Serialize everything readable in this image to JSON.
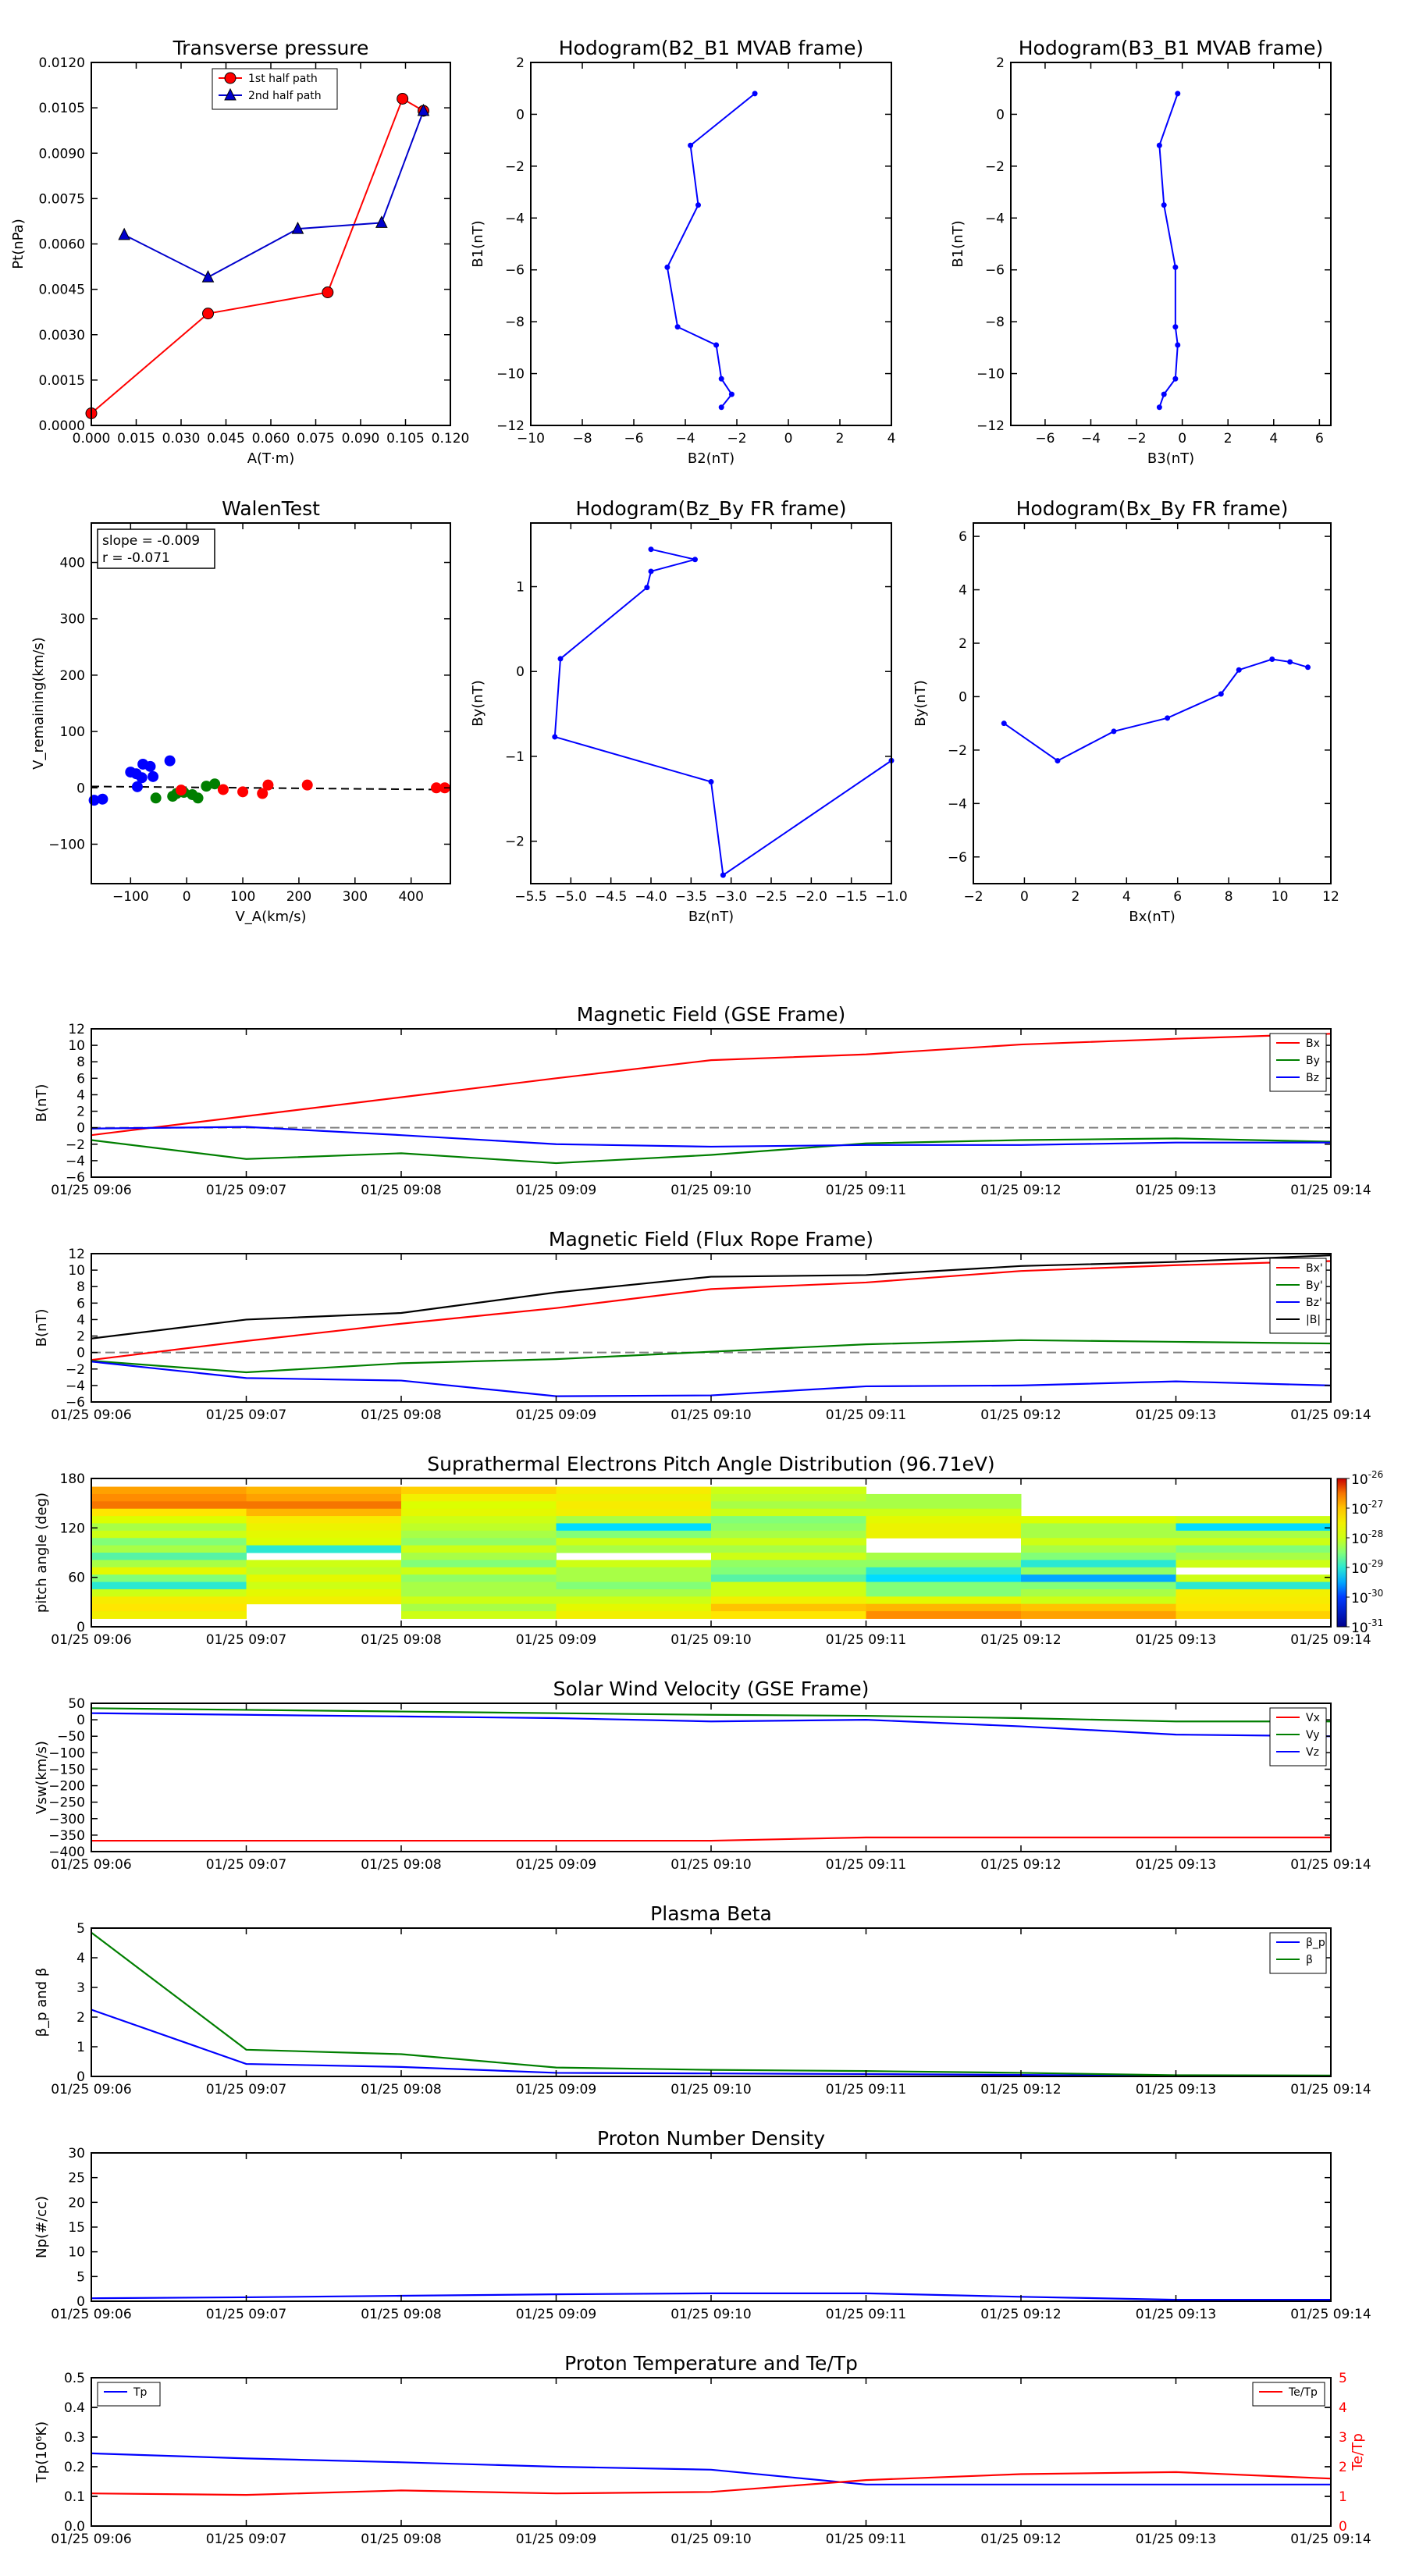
{
  "chart_data": [
    {
      "id": "transverse-pressure",
      "type": "line",
      "title": "Transverse pressure",
      "xlabel": "A(T·m)",
      "ylabel": "Pt(nPa)",
      "xlim": [
        0,
        0.12
      ],
      "ylim": [
        0,
        0.012
      ],
      "xticks": [
        "0.000",
        "0.015",
        "0.030",
        "0.045",
        "0.060",
        "0.075",
        "0.090",
        "0.105",
        "0.120"
      ],
      "yticks": [
        "0.0000",
        "0.0015",
        "0.0030",
        "0.0045",
        "0.0060",
        "0.0075",
        "0.0090",
        "0.0105",
        "0.0120"
      ],
      "legend": "top-center",
      "series": [
        {
          "name": "1st half path",
          "color": "#ff0000",
          "marker": "circle",
          "x": [
            0.0,
            0.039,
            0.079,
            0.104,
            0.111
          ],
          "y": [
            0.0004,
            0.0037,
            0.0044,
            0.0108,
            0.0104
          ]
        },
        {
          "name": "2nd half path",
          "color": "#0000cc",
          "marker": "triangle",
          "x": [
            0.011,
            0.039,
            0.069,
            0.097,
            0.111
          ],
          "y": [
            0.0063,
            0.0049,
            0.0065,
            0.0067,
            0.0104
          ]
        }
      ]
    },
    {
      "id": "hodogram-b2-b1",
      "type": "line",
      "title": "Hodogram(B2_B1 MVAB frame)",
      "xlabel": "B2(nT)",
      "ylabel": "B1(nT)",
      "xlim": [
        -10,
        4
      ],
      "ylim": [
        -12,
        2
      ],
      "xticks": [
        "−10",
        "−8",
        "−6",
        "−4",
        "−2",
        "0",
        "2",
        "4"
      ],
      "yticks": [
        "−12",
        "−10",
        "−8",
        "−6",
        "−4",
        "−2",
        "0",
        "2"
      ],
      "series": [
        {
          "color": "#0000ff",
          "marker": "dot",
          "x": [
            -1.3,
            -3.8,
            -3.5,
            -4.7,
            -4.3,
            -2.8,
            -2.6,
            -2.2,
            -2.6
          ],
          "y": [
            0.8,
            -1.2,
            -3.5,
            -5.9,
            -8.2,
            -8.9,
            -10.2,
            -10.8,
            -11.3
          ]
        }
      ]
    },
    {
      "id": "hodogram-b3-b1",
      "type": "line",
      "title": "Hodogram(B3_B1 MVAB frame)",
      "xlabel": "B3(nT)",
      "ylabel": "B1(nT)",
      "xlim": [
        -7.5,
        6.5
      ],
      "ylim": [
        -12,
        2
      ],
      "xticks": [
        "−6",
        "−4",
        "−2",
        "0",
        "2",
        "4",
        "6"
      ],
      "xtick_values": [
        -6,
        -4,
        -2,
        0,
        2,
        4,
        6
      ],
      "yticks": [
        "−12",
        "−10",
        "−8",
        "−6",
        "−4",
        "−2",
        "0",
        "2"
      ],
      "series": [
        {
          "color": "#0000ff",
          "marker": "dot",
          "x": [
            -0.2,
            -1.0,
            -0.8,
            -0.3,
            -0.3,
            -0.2,
            -0.3,
            -0.8,
            -1.0
          ],
          "y": [
            0.8,
            -1.2,
            -3.5,
            -5.9,
            -8.2,
            -8.9,
            -10.2,
            -10.8,
            -11.3
          ]
        }
      ]
    },
    {
      "id": "walen-test",
      "type": "scatter",
      "title": "WalenTest",
      "xlabel": "V_A(km/s)",
      "ylabel": "V_remaining(km/s)",
      "xlim": [
        -170,
        470
      ],
      "ylim": [
        -170,
        470
      ],
      "xticks": [
        "−100",
        "0",
        "100",
        "200",
        "300",
        "400"
      ],
      "xtick_values": [
        -100,
        0,
        100,
        200,
        300,
        400
      ],
      "yticks": [
        "−100",
        "0",
        "100",
        "200",
        "300",
        "400"
      ],
      "ytick_values": [
        -100,
        0,
        100,
        200,
        300,
        400
      ],
      "annotation": [
        "slope = -0.009",
        "r = -0.071"
      ],
      "fit_line": {
        "slope": -0.009,
        "intercept": 1
      },
      "series": [
        {
          "color": "#0000ff",
          "x": [
            -165,
            -150,
            -100,
            -90,
            -88,
            -80,
            -78,
            -65,
            -60,
            -30
          ],
          "y": [
            -22,
            -20,
            28,
            25,
            2,
            18,
            42,
            38,
            20,
            48
          ]
        },
        {
          "color": "#007f00",
          "x": [
            -55,
            -25,
            -18,
            -5,
            10,
            20,
            35,
            50
          ],
          "y": [
            -18,
            -15,
            -10,
            -8,
            -12,
            -18,
            3,
            7
          ]
        },
        {
          "color": "#ff0000",
          "x": [
            -10,
            65,
            100,
            135,
            145,
            215,
            445,
            460
          ],
          "y": [
            -4,
            -3,
            -7,
            -10,
            5,
            5,
            0,
            0
          ]
        }
      ]
    },
    {
      "id": "hodogram-bz-by",
      "type": "line",
      "title": "Hodogram(Bz_By FR frame)",
      "xlabel": "Bz(nT)",
      "ylabel": "By(nT)",
      "xlim": [
        -5.5,
        -1.0
      ],
      "ylim": [
        -2.5,
        1.75
      ],
      "xticks": [
        "−5.5",
        "−5.0",
        "−4.5",
        "−4.0",
        "−3.5",
        "−3.0",
        "−2.5",
        "−2.0",
        "−1.5",
        "−1.0"
      ],
      "yticks": [
        "−2",
        "−1",
        "0",
        "1"
      ],
      "ytick_values": [
        -2,
        -1,
        0,
        1
      ],
      "series": [
        {
          "color": "#0000ff",
          "marker": "dot",
          "x": [
            -1.0,
            -3.1,
            -3.25,
            -5.2,
            -5.13,
            -4.05,
            -4.0,
            -3.45,
            -4.0
          ],
          "y": [
            -1.05,
            -2.4,
            -1.3,
            -0.77,
            0.15,
            0.99,
            1.18,
            1.32,
            1.44
          ]
        }
      ]
    },
    {
      "id": "hodogram-bx-by",
      "type": "line",
      "title": "Hodogram(Bx_By FR frame)",
      "xlabel": "Bx(nT)",
      "ylabel": "By(nT)",
      "xlim": [
        -2,
        12
      ],
      "ylim": [
        -7,
        6.5
      ],
      "xticks": [
        "−2",
        "0",
        "2",
        "4",
        "6",
        "8",
        "10",
        "12"
      ],
      "yticks": [
        "−6",
        "−4",
        "−2",
        "0",
        "2",
        "4",
        "6"
      ],
      "ytick_values": [
        -6,
        -4,
        -2,
        0,
        2,
        4,
        6
      ],
      "series": [
        {
          "color": "#0000ff",
          "marker": "dot",
          "x": [
            -0.8,
            1.3,
            3.5,
            5.6,
            7.7,
            8.4,
            9.7,
            10.4,
            11.1
          ],
          "y": [
            -1.0,
            -2.4,
            -1.3,
            -0.8,
            0.1,
            1.0,
            1.4,
            1.3,
            1.1
          ]
        }
      ]
    },
    {
      "id": "mag-gse",
      "type": "line",
      "title": "Magnetic Field (GSE Frame)",
      "ylabel": "B(nT)",
      "xticks": [
        "01/25 09:06",
        "01/25 09:07",
        "01/25 09:08",
        "01/25 09:09",
        "01/25 09:10",
        "01/25 09:11",
        "01/25 09:12",
        "01/25 09:13",
        "01/25 09:14"
      ],
      "ylim": [
        -6,
        12
      ],
      "yticks": [
        "−6",
        "−4",
        "−2",
        "0",
        "2",
        "4",
        "6",
        "8",
        "10",
        "12"
      ],
      "zero_line": true,
      "legend": "top-right",
      "series": [
        {
          "name": "Bx",
          "color": "#ff0000",
          "values": [
            -0.9,
            1.4,
            3.7,
            6.0,
            8.2,
            8.9,
            10.1,
            10.8,
            11.4
          ]
        },
        {
          "name": "By",
          "color": "#007f00",
          "values": [
            -1.5,
            -3.8,
            -3.1,
            -4.3,
            -3.3,
            -1.9,
            -1.5,
            -1.3,
            -1.7
          ]
        },
        {
          "name": "Bz",
          "color": "#0000ff",
          "values": [
            -0.1,
            0.1,
            -0.9,
            -2.0,
            -2.3,
            -2.1,
            -2.1,
            -1.8,
            -1.8
          ]
        }
      ]
    },
    {
      "id": "mag-fr",
      "type": "line",
      "title": "Magnetic Field (Flux Rope Frame)",
      "ylabel": "B(nT)",
      "xticks": [
        "01/25 09:06",
        "01/25 09:07",
        "01/25 09:08",
        "01/25 09:09",
        "01/25 09:10",
        "01/25 09:11",
        "01/25 09:12",
        "01/25 09:13",
        "01/25 09:14"
      ],
      "ylim": [
        -6,
        12
      ],
      "yticks": [
        "−6",
        "−4",
        "−2",
        "0",
        "2",
        "4",
        "6",
        "8",
        "10",
        "12"
      ],
      "zero_line": true,
      "legend": "top-right",
      "series": [
        {
          "name": "Bx'",
          "color": "#ff0000",
          "values": [
            -0.9,
            1.4,
            3.5,
            5.4,
            7.7,
            8.5,
            9.9,
            10.6,
            11.1
          ]
        },
        {
          "name": "By'",
          "color": "#007f00",
          "values": [
            -1.0,
            -2.4,
            -1.3,
            -0.8,
            0.1,
            1.0,
            1.5,
            1.3,
            1.1
          ]
        },
        {
          "name": "Bz'",
          "color": "#0000ff",
          "values": [
            -1.1,
            -3.1,
            -3.4,
            -5.3,
            -5.2,
            -4.1,
            -4.0,
            -3.5,
            -4.0
          ]
        },
        {
          "name": "|B|",
          "color": "#000000",
          "values": [
            1.7,
            4.0,
            4.8,
            7.3,
            9.2,
            9.4,
            10.5,
            11.0,
            11.8
          ]
        }
      ]
    },
    {
      "id": "pad",
      "type": "heatmap",
      "title": "Suprathermal Electrons Pitch Angle Distribution (96.71eV)",
      "ylabel": "pitch angle (deg)",
      "xticks": [
        "01/25 09:06",
        "01/25 09:07",
        "01/25 09:08",
        "01/25 09:09",
        "01/25 09:10",
        "01/25 09:11",
        "01/25 09:12",
        "01/25 09:13",
        "01/25 09:14"
      ],
      "ylim": [
        0,
        180
      ],
      "yticks": [
        "0",
        "60",
        "120",
        "180"
      ],
      "colorbar_ticks": [
        "10",
        "10",
        "10",
        "10",
        "10",
        "10"
      ],
      "colorbar_exponents": [
        "-26",
        "-27",
        "-28",
        "-29",
        "-30",
        "-31"
      ],
      "rows_top_to_bottom": [
        [
          0.85,
          0.82,
          0.78,
          0.72,
          0.6,
          -1,
          -1,
          -1
        ],
        [
          0.88,
          0.85,
          0.7,
          0.68,
          0.58,
          0.55,
          -1,
          -1
        ],
        [
          0.9,
          0.9,
          0.62,
          0.72,
          0.55,
          0.55,
          -1,
          -1
        ],
        [
          0.75,
          0.82,
          0.65,
          0.7,
          0.6,
          0.6,
          -1,
          -1
        ],
        [
          0.62,
          0.72,
          0.6,
          0.55,
          0.5,
          0.65,
          0.62,
          0.6
        ],
        [
          0.55,
          0.68,
          0.58,
          0.35,
          0.52,
          0.68,
          0.55,
          0.35
        ],
        [
          0.6,
          0.65,
          0.55,
          0.5,
          0.55,
          0.68,
          0.55,
          0.55
        ],
        [
          0.5,
          0.62,
          0.52,
          0.6,
          0.6,
          -1,
          0.6,
          0.6
        ],
        [
          0.55,
          0.4,
          0.6,
          0.55,
          0.55,
          -1,
          0.55,
          0.5
        ],
        [
          0.45,
          -1,
          0.55,
          -1,
          0.6,
          0.55,
          0.5,
          0.55
        ],
        [
          0.55,
          0.6,
          0.5,
          0.6,
          0.52,
          0.52,
          0.4,
          0.6
        ],
        [
          0.65,
          0.58,
          0.6,
          0.55,
          0.5,
          0.4,
          0.52,
          -1
        ],
        [
          0.5,
          0.65,
          0.52,
          0.55,
          0.45,
          0.35,
          0.3,
          0.6
        ],
        [
          0.4,
          0.6,
          0.55,
          0.5,
          0.6,
          0.5,
          0.5,
          0.4
        ],
        [
          0.6,
          0.65,
          0.55,
          0.55,
          0.6,
          0.5,
          0.55,
          0.7
        ],
        [
          0.72,
          0.7,
          0.6,
          0.6,
          0.7,
          0.65,
          0.6,
          0.72
        ],
        [
          0.75,
          -1,
          0.55,
          0.65,
          0.8,
          0.82,
          0.8,
          0.75
        ],
        [
          0.7,
          -1,
          0.6,
          0.7,
          0.75,
          0.88,
          0.85,
          0.78
        ]
      ]
    },
    {
      "id": "vsw",
      "type": "line",
      "title": "Solar Wind Velocity (GSE Frame)",
      "ylabel": "Vsw(km/s)",
      "xticks": [
        "01/25 09:06",
        "01/25 09:07",
        "01/25 09:08",
        "01/25 09:09",
        "01/25 09:10",
        "01/25 09:11",
        "01/25 09:12",
        "01/25 09:13",
        "01/25 09:14"
      ],
      "ylim": [
        -400,
        50
      ],
      "yticks": [
        "−400",
        "−350",
        "−300",
        "−250",
        "−200",
        "−150",
        "−100",
        "−50",
        "0",
        "50"
      ],
      "legend": "top-right",
      "series": [
        {
          "name": "Vx",
          "color": "#ff0000",
          "values": [
            -367,
            -367,
            -367,
            -367,
            -367,
            -357,
            -357,
            -357,
            -357
          ]
        },
        {
          "name": "Vy",
          "color": "#007f00",
          "values": [
            35,
            30,
            25,
            20,
            15,
            12,
            5,
            -5,
            -5
          ]
        },
        {
          "name": "Vz",
          "color": "#0000ff",
          "values": [
            20,
            15,
            10,
            5,
            -5,
            0,
            -20,
            -45,
            -50
          ]
        }
      ]
    },
    {
      "id": "beta",
      "type": "line",
      "title": "Plasma Beta",
      "ylabel": "β_p and β",
      "xticks": [
        "01/25 09:06",
        "01/25 09:07",
        "01/25 09:08",
        "01/25 09:09",
        "01/25 09:10",
        "01/25 09:11",
        "01/25 09:12",
        "01/25 09:13",
        "01/25 09:14"
      ],
      "ylim": [
        0,
        5
      ],
      "yticks": [
        "0",
        "1",
        "2",
        "3",
        "4",
        "5"
      ],
      "legend": "top-right",
      "series": [
        {
          "name": "β_p",
          "color": "#0000ff",
          "values": [
            2.25,
            0.42,
            0.32,
            0.12,
            0.1,
            0.08,
            0.05,
            0.02,
            0.02
          ]
        },
        {
          "name": "β",
          "color": "#007f00",
          "values": [
            4.85,
            0.9,
            0.75,
            0.3,
            0.22,
            0.18,
            0.12,
            0.04,
            0.03
          ]
        }
      ]
    },
    {
      "id": "np",
      "type": "line",
      "title": "Proton Number Density",
      "ylabel": "Np(#/cc)",
      "xticks": [
        "01/25 09:06",
        "01/25 09:07",
        "01/25 09:08",
        "01/25 09:09",
        "01/25 09:10",
        "01/25 09:11",
        "01/25 09:12",
        "01/25 09:13",
        "01/25 09:14"
      ],
      "ylim": [
        0,
        30
      ],
      "yticks": [
        "0",
        "5",
        "10",
        "15",
        "20",
        "25",
        "30"
      ],
      "series": [
        {
          "color": "#0000ff",
          "values": [
            0.6,
            0.8,
            1.1,
            1.4,
            1.6,
            1.6,
            0.9,
            0.3,
            0.3
          ]
        }
      ]
    },
    {
      "id": "tp",
      "type": "line",
      "title": "Proton Temperature and Te/Tp",
      "ylabel": "Tp(10⁶K)",
      "y2label": "Te/Tp",
      "xticks": [
        "01/25 09:06",
        "01/25 09:07",
        "01/25 09:08",
        "01/25 09:09",
        "01/25 09:10",
        "01/25 09:11",
        "01/25 09:12",
        "01/25 09:13",
        "01/25 09:14"
      ],
      "ylim": [
        0,
        0.5
      ],
      "yticks": [
        "0.0",
        "0.1",
        "0.2",
        "0.3",
        "0.4",
        "0.5"
      ],
      "y2lim": [
        0,
        5
      ],
      "y2ticks": [
        "0",
        "1",
        "2",
        "3",
        "4",
        "5"
      ],
      "series": [
        {
          "name": "Tp",
          "color": "#0000ff",
          "axis": "left",
          "legend": "top-left",
          "values": [
            0.245,
            0.228,
            0.215,
            0.2,
            0.19,
            0.14,
            0.14,
            0.14,
            0.14
          ]
        },
        {
          "name": "Te/Tp",
          "color": "#ff0000",
          "axis": "right",
          "legend": "top-right",
          "values": [
            1.1,
            1.05,
            1.2,
            1.1,
            1.15,
            1.55,
            1.75,
            1.82,
            1.6
          ]
        }
      ]
    }
  ]
}
